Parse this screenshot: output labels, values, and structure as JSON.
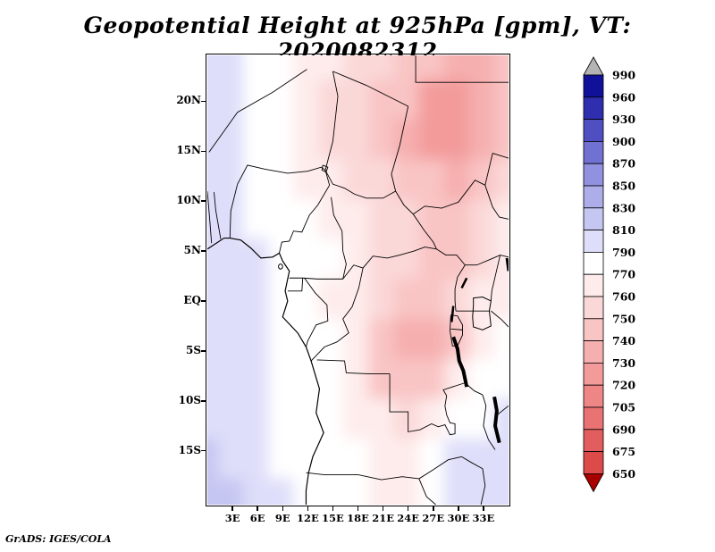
{
  "title": "Geopotential Height at 925hPa [gpm], VT: 2020082312",
  "attribution": "GrADS: IGES/COLA",
  "colorbar": {
    "labels": [
      "990",
      "960",
      "930",
      "900",
      "870",
      "850",
      "830",
      "810",
      "790",
      "770",
      "760",
      "750",
      "740",
      "730",
      "720",
      "705",
      "690",
      "675",
      "650"
    ]
  },
  "axes": {
    "lat_ticks": [
      {
        "label": "20N",
        "lat": 20
      },
      {
        "label": "15N",
        "lat": 15
      },
      {
        "label": "10N",
        "lat": 10
      },
      {
        "label": "5N",
        "lat": 5
      },
      {
        "label": "EQ",
        "lat": 0
      },
      {
        "label": "5S",
        "lat": -5
      },
      {
        "label": "10S",
        "lat": -10
      },
      {
        "label": "15S",
        "lat": -15
      }
    ],
    "lon_ticks": [
      {
        "label": "3E",
        "lon": 3
      },
      {
        "label": "6E",
        "lon": 6
      },
      {
        "label": "9E",
        "lon": 9
      },
      {
        "label": "12E",
        "lon": 12
      },
      {
        "label": "15E",
        "lon": 15
      },
      {
        "label": "18E",
        "lon": 18
      },
      {
        "label": "21E",
        "lon": 21
      },
      {
        "label": "24E",
        "lon": 24
      },
      {
        "label": "27E",
        "lon": 27
      },
      {
        "label": "30E",
        "lon": 30
      },
      {
        "label": "33E",
        "lon": 33
      }
    ]
  },
  "chart_data": {
    "type": "heatmap",
    "title": "Geopotential Height at 925hPa [gpm], VT: 2020082312",
    "variable": "Geopotential Height",
    "pressure_level": "925hPa",
    "units": "gpm",
    "valid_time": "2020082312",
    "projection": "latlon",
    "lon_range": [
      0,
      36
    ],
    "lat_range": [
      -20.4,
      24.6
    ],
    "legend_position": "right",
    "levels": [
      650,
      675,
      690,
      705,
      720,
      730,
      740,
      750,
      760,
      770,
      790,
      810,
      830,
      850,
      870,
      900,
      930,
      960,
      990
    ],
    "colors_low_to_high": [
      "#a80000",
      "#dc4a4a",
      "#e25e5e",
      "#e97272",
      "#ef8686",
      "#f39b9b",
      "#f6afaf",
      "#f9c4c4",
      "#fbd8d8",
      "#feecec",
      "#ffffff",
      "#dedefa",
      "#c6c6f2",
      "#adade9",
      "#9191df",
      "#7171d2",
      "#4f4fc2",
      "#2e2eae",
      "#101099",
      "#b4b4b4"
    ],
    "grid": {
      "lons": [
        0,
        3,
        6,
        9,
        12,
        15,
        18,
        21,
        24,
        27,
        30,
        33,
        36
      ],
      "lats": [
        24,
        20,
        16,
        12,
        8,
        4,
        0,
        -4,
        -8,
        -12,
        -16,
        -20
      ],
      "values_gpm": [
        [
          796,
          793,
          788,
          780,
          768,
          760,
          755,
          751,
          747,
          741,
          736,
          739,
          746
        ],
        [
          795,
          792,
          786,
          776,
          764,
          756,
          751,
          746,
          741,
          729,
          726,
          733,
          743
        ],
        [
          793,
          791,
          783,
          773,
          762,
          755,
          750,
          744,
          738,
          728,
          725,
          734,
          744
        ],
        [
          794,
          792,
          786,
          774,
          769,
          762,
          756,
          751,
          747,
          741,
          737,
          746,
          754
        ],
        [
          797,
          794,
          789,
          778,
          771,
          768,
          762,
          757,
          752,
          749,
          747,
          756,
          763
        ],
        [
          799,
          796,
          791,
          785,
          773,
          770,
          763,
          757,
          752,
          749,
          748,
          756,
          766
        ],
        [
          798,
          796,
          790,
          781,
          772,
          768,
          760,
          752,
          748,
          746,
          750,
          760,
          768
        ],
        [
          799,
          797,
          791,
          786,
          773,
          770,
          762,
          748,
          739,
          737,
          748,
          766,
          779
        ],
        [
          802,
          799,
          793,
          787,
          774,
          771,
          761,
          748,
          740,
          746,
          764,
          777,
          784
        ],
        [
          806,
          803,
          794,
          788,
          774,
          771,
          768,
          760,
          753,
          768,
          780,
          786,
          792
        ],
        [
          812,
          808,
          797,
          789,
          778,
          772,
          770,
          768,
          763,
          779,
          790,
          794,
          796
        ],
        [
          814,
          810,
          799,
          791,
          783,
          775,
          771,
          769,
          766,
          782,
          792,
          795,
          797
        ]
      ]
    }
  }
}
